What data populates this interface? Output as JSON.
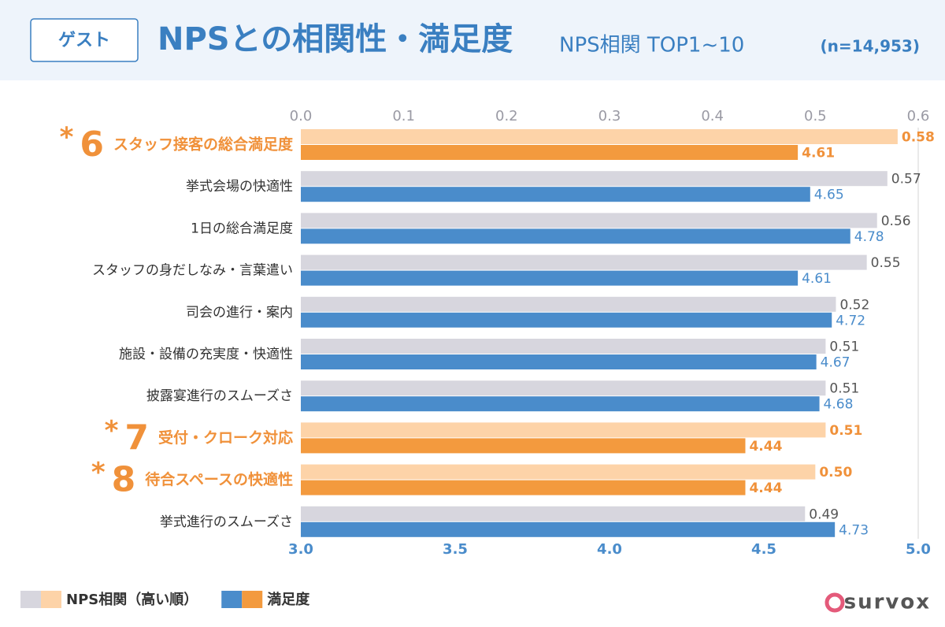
{
  "header": {
    "badge": "ゲスト",
    "title": "NPSとの相関性・満足度",
    "subtitle": "NPS相関 TOP1~10",
    "note": "(n=14,953)"
  },
  "logo": "survox",
  "chart_data": {
    "type": "bar",
    "orientation": "horizontal",
    "categories": [
      "スタッフ接客の総合満足度",
      "挙式会場の快適性",
      "1日の総合満足度",
      "スタッフの身だしなみ・言葉遣い",
      "司会の進行・案内",
      "施設・設備の充実度・快適性",
      "披露宴進行のスムーズさ",
      "受付・クローク対応",
      "待合スペースの快適性",
      "挙式進行のスムーズさ"
    ],
    "category_marks": [
      {
        "symbol": "*",
        "label": "6"
      },
      null,
      null,
      null,
      null,
      null,
      null,
      {
        "symbol": "*",
        "label": "7"
      },
      {
        "symbol": "*",
        "label": "8"
      },
      null
    ],
    "highlight_color": "#f0913a",
    "series": [
      {
        "name": "NPS相関（高い順）",
        "color": "#d7d6de",
        "highlight_color": "#fdd3a8",
        "label_color": "#555555",
        "values": [
          0.58,
          0.57,
          0.56,
          0.55,
          0.52,
          0.51,
          0.51,
          0.51,
          0.5,
          0.49
        ],
        "value_labels": [
          "0.58",
          "0.57",
          "0.56",
          "0.55",
          "0.52",
          "0.51",
          "0.51",
          "0.51",
          "0.50",
          "0.49"
        ]
      },
      {
        "name": "満足度",
        "color": "#4a8ccb",
        "highlight_color": "#f39a3e",
        "label_color": "#4a8ccb",
        "axis": "x2",
        "values": [
          4.61,
          4.65,
          4.78,
          4.61,
          4.72,
          4.67,
          4.68,
          4.44,
          4.44,
          4.73
        ]
      }
    ],
    "xlim": [
      0,
      0.6
    ],
    "xticks": [
      {
        "value": 0,
        "label": "0.0"
      },
      0.1,
      0.2,
      0.3,
      0.4,
      0.5,
      0.6
    ],
    "x2lim": [
      3,
      5
    ],
    "x2ticks": [
      {
        "value": 3,
        "label": "3.0"
      },
      3.5,
      {
        "value": 4,
        "label": "4.0"
      },
      4.5,
      {
        "value": 5,
        "label": "5.0"
      }
    ]
  }
}
